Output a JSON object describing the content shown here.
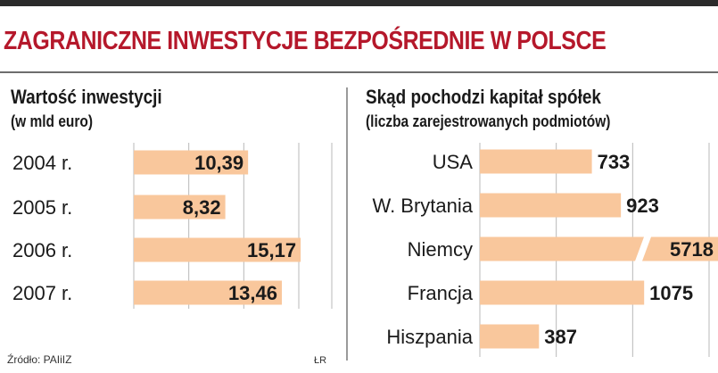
{
  "header": {
    "title": "ZAGRANICZNE INWESTYCJE BEZPOŚREDNIE W POLSCE"
  },
  "colors": {
    "title": "#b5182b",
    "bar": "#f9c79c",
    "grid": "#b9b9b9",
    "text": "#1a1a1a"
  },
  "chart_data": [
    {
      "type": "bar",
      "orientation": "horizontal",
      "title": "Wartość inwestycji",
      "subtitle": "(w mld euro)",
      "categories": [
        "2004 r.",
        "2005 r.",
        "2006 r.",
        "2007 r."
      ],
      "values": [
        10.39,
        8.32,
        15.17,
        13.46
      ],
      "value_labels": [
        "10,39",
        "8,32",
        "15,17",
        "13,46"
      ],
      "xlim": [
        0,
        18
      ],
      "grid": true
    },
    {
      "type": "bar",
      "orientation": "horizontal",
      "title": "Skąd pochodzi kapitał spółek",
      "subtitle": "(liczba zarejestrowanych podmiotów)",
      "categories": [
        "USA",
        "W. Brytania",
        "Niemcy",
        "Francja",
        "Hiszpania"
      ],
      "values": [
        733,
        923,
        5718,
        1075,
        387
      ],
      "value_labels": [
        "733",
        "923",
        "5718",
        "1075",
        "387"
      ],
      "xlim": [
        0,
        1500
      ],
      "broken_axis_category": "Niemcy",
      "grid": true
    }
  ],
  "footer": {
    "source": "Źródło: PAIiIZ",
    "credit": "ŁR"
  }
}
